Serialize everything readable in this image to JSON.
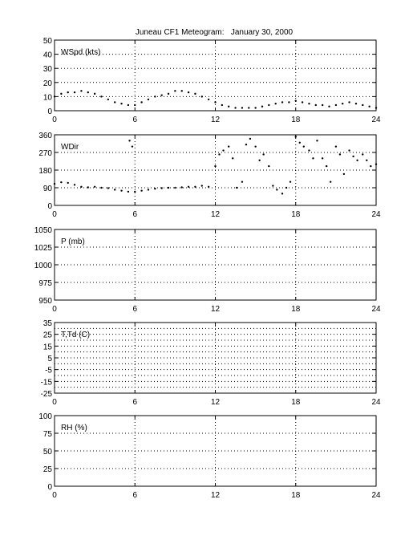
{
  "title": "Juneau CF1 Meteogram:   January 30, 2000",
  "colors": {
    "line": "#000000",
    "background": "#ffffff",
    "grid": "#000000"
  },
  "chart_data": [
    {
      "type": "scatter",
      "label": "WSpd (kts)",
      "xlim": [
        0,
        24
      ],
      "ylim": [
        0,
        50
      ],
      "x_ticks": [
        0,
        6,
        12,
        18,
        24
      ],
      "y_ticks": [
        0,
        10,
        20,
        30,
        40,
        50
      ],
      "grid": true,
      "series": [
        {
          "x": [
            0,
            0.5,
            1,
            1.5,
            2,
            2.5,
            3,
            3.5,
            4,
            4.5,
            5,
            5.5,
            6,
            6.5,
            7,
            7.5,
            8,
            8.5,
            9,
            9.5,
            10,
            10.5,
            11,
            11.5,
            12,
            12.5,
            13,
            13.5,
            14,
            14.5,
            15,
            15.5,
            16,
            16.5,
            17,
            17.5,
            18,
            18.5,
            19,
            19.5,
            20,
            20.5,
            21,
            21.5,
            22,
            22.5,
            23,
            23.5,
            24
          ],
          "y": [
            10,
            12,
            13,
            13,
            14,
            13,
            12,
            10,
            8,
            6,
            5,
            4,
            4,
            6,
            8,
            10,
            11,
            12,
            14,
            14,
            13,
            12,
            10,
            8,
            6,
            4,
            3,
            2,
            2,
            2,
            2,
            3,
            4,
            5,
            6,
            6,
            7,
            6,
            5,
            4,
            4,
            3,
            4,
            5,
            6,
            5,
            4,
            3,
            2
          ]
        }
      ]
    },
    {
      "type": "scatter",
      "label": "WDir",
      "xlim": [
        0,
        24
      ],
      "ylim": [
        0,
        360
      ],
      "x_ticks": [
        0,
        6,
        12,
        18,
        24
      ],
      "y_ticks": [
        0,
        90,
        180,
        270,
        360
      ],
      "grid": true,
      "series": [
        {
          "x": [
            0,
            0.5,
            1,
            1.5,
            2,
            2.5,
            3,
            3.5,
            4,
            4.5,
            5,
            5.5,
            5.6,
            5.8,
            6,
            6.5,
            7,
            7.5,
            8,
            8.5,
            9,
            9.5,
            10,
            10.5,
            11,
            11.5,
            12,
            12.3,
            12.6,
            13,
            13.3,
            13.6,
            14,
            14.3,
            14.6,
            15,
            15.3,
            15.6,
            16,
            16.3,
            16.6,
            17,
            17.3,
            17.6,
            18,
            18.3,
            18.6,
            19,
            19.3,
            19.6,
            20,
            20.3,
            20.6,
            21,
            21.3,
            21.6,
            22,
            22.3,
            22.6,
            23,
            23.3,
            23.6,
            24
          ],
          "y": [
            110,
            118,
            115,
            105,
            95,
            92,
            95,
            90,
            88,
            80,
            75,
            70,
            330,
            300,
            70,
            75,
            80,
            85,
            88,
            90,
            90,
            92,
            95,
            95,
            100,
            95,
            200,
            260,
            280,
            300,
            240,
            90,
            120,
            310,
            340,
            300,
            230,
            260,
            200,
            100,
            80,
            60,
            90,
            120,
            350,
            320,
            300,
            280,
            240,
            330,
            240,
            200,
            120,
            300,
            260,
            160,
            280,
            250,
            230,
            260,
            230,
            200,
            210
          ]
        }
      ]
    },
    {
      "type": "line",
      "label": "P (mb)",
      "xlim": [
        0,
        24
      ],
      "ylim": [
        950,
        1050
      ],
      "x_ticks": [
        0,
        6,
        12,
        18,
        24
      ],
      "y_ticks": [
        950,
        975,
        1000,
        1025,
        1050
      ],
      "grid": true,
      "series": []
    },
    {
      "type": "line",
      "label": "T,Td (C)",
      "xlim": [
        0,
        24
      ],
      "ylim": [
        -25,
        35
      ],
      "x_ticks": [
        0,
        6,
        12,
        18,
        24
      ],
      "y_ticks": [
        -25,
        -15,
        -5,
        5,
        15,
        25,
        35
      ],
      "y_tick_labels": [
        "-25",
        "-15",
        "-5",
        "5",
        "15",
        "25",
        "35"
      ],
      "minor_y_ticks": [
        -20,
        -10,
        0,
        10,
        20,
        30
      ],
      "grid": true,
      "series": []
    },
    {
      "type": "line",
      "label": "RH (%)",
      "xlim": [
        0,
        24
      ],
      "ylim": [
        0,
        100
      ],
      "x_ticks": [
        0,
        6,
        12,
        18,
        24
      ],
      "y_ticks": [
        0,
        25,
        50,
        75,
        100
      ],
      "grid": true,
      "series": []
    }
  ]
}
